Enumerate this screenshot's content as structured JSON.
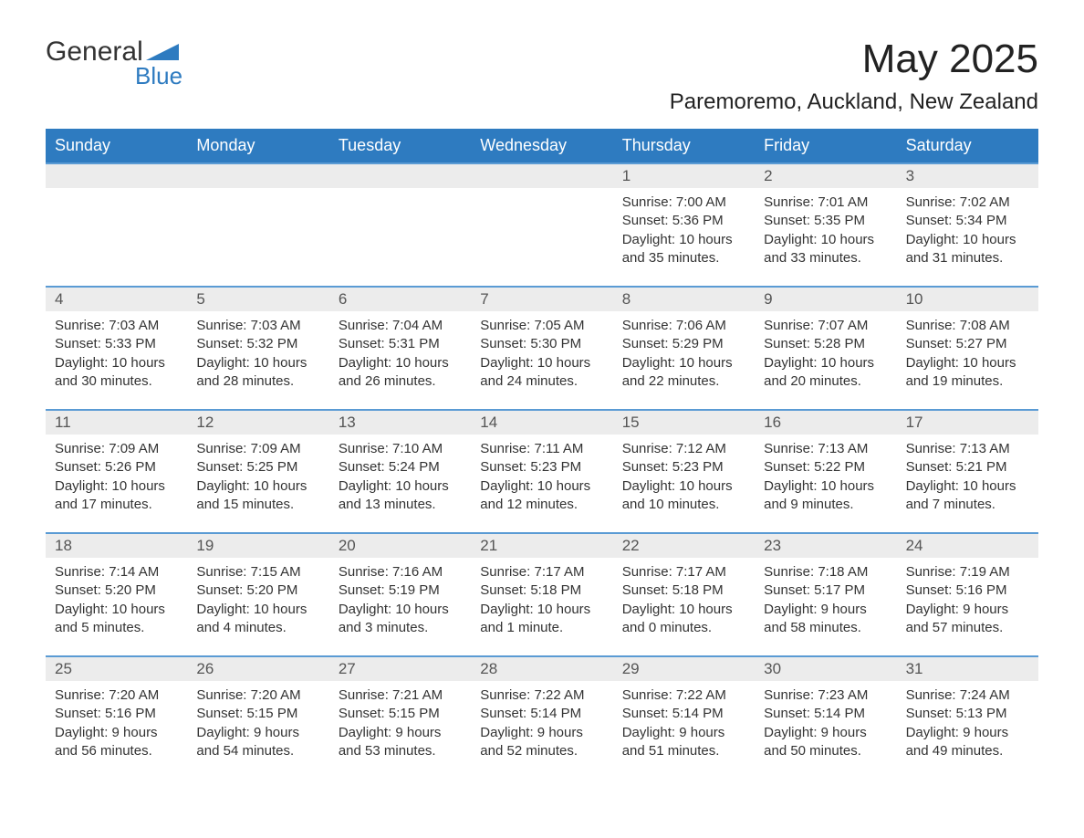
{
  "logo": {
    "general": "General",
    "blue": "Blue"
  },
  "title": "May 2025",
  "location": "Paremoremo, Auckland, New Zealand",
  "colors": {
    "header_bg": "#2e7bc0",
    "header_text": "#ffffff",
    "week_border": "#5a9bd4",
    "daynum_bg": "#ececec",
    "page_bg": "#ffffff"
  },
  "dow": [
    "Sunday",
    "Monday",
    "Tuesday",
    "Wednesday",
    "Thursday",
    "Friday",
    "Saturday"
  ],
  "weeks": [
    [
      null,
      null,
      null,
      null,
      {
        "n": "1",
        "sr": "Sunrise: 7:00 AM",
        "ss": "Sunset: 5:36 PM",
        "dl": "Daylight: 10 hours and 35 minutes."
      },
      {
        "n": "2",
        "sr": "Sunrise: 7:01 AM",
        "ss": "Sunset: 5:35 PM",
        "dl": "Daylight: 10 hours and 33 minutes."
      },
      {
        "n": "3",
        "sr": "Sunrise: 7:02 AM",
        "ss": "Sunset: 5:34 PM",
        "dl": "Daylight: 10 hours and 31 minutes."
      }
    ],
    [
      {
        "n": "4",
        "sr": "Sunrise: 7:03 AM",
        "ss": "Sunset: 5:33 PM",
        "dl": "Daylight: 10 hours and 30 minutes."
      },
      {
        "n": "5",
        "sr": "Sunrise: 7:03 AM",
        "ss": "Sunset: 5:32 PM",
        "dl": "Daylight: 10 hours and 28 minutes."
      },
      {
        "n": "6",
        "sr": "Sunrise: 7:04 AM",
        "ss": "Sunset: 5:31 PM",
        "dl": "Daylight: 10 hours and 26 minutes."
      },
      {
        "n": "7",
        "sr": "Sunrise: 7:05 AM",
        "ss": "Sunset: 5:30 PM",
        "dl": "Daylight: 10 hours and 24 minutes."
      },
      {
        "n": "8",
        "sr": "Sunrise: 7:06 AM",
        "ss": "Sunset: 5:29 PM",
        "dl": "Daylight: 10 hours and 22 minutes."
      },
      {
        "n": "9",
        "sr": "Sunrise: 7:07 AM",
        "ss": "Sunset: 5:28 PM",
        "dl": "Daylight: 10 hours and 20 minutes."
      },
      {
        "n": "10",
        "sr": "Sunrise: 7:08 AM",
        "ss": "Sunset: 5:27 PM",
        "dl": "Daylight: 10 hours and 19 minutes."
      }
    ],
    [
      {
        "n": "11",
        "sr": "Sunrise: 7:09 AM",
        "ss": "Sunset: 5:26 PM",
        "dl": "Daylight: 10 hours and 17 minutes."
      },
      {
        "n": "12",
        "sr": "Sunrise: 7:09 AM",
        "ss": "Sunset: 5:25 PM",
        "dl": "Daylight: 10 hours and 15 minutes."
      },
      {
        "n": "13",
        "sr": "Sunrise: 7:10 AM",
        "ss": "Sunset: 5:24 PM",
        "dl": "Daylight: 10 hours and 13 minutes."
      },
      {
        "n": "14",
        "sr": "Sunrise: 7:11 AM",
        "ss": "Sunset: 5:23 PM",
        "dl": "Daylight: 10 hours and 12 minutes."
      },
      {
        "n": "15",
        "sr": "Sunrise: 7:12 AM",
        "ss": "Sunset: 5:23 PM",
        "dl": "Daylight: 10 hours and 10 minutes."
      },
      {
        "n": "16",
        "sr": "Sunrise: 7:13 AM",
        "ss": "Sunset: 5:22 PM",
        "dl": "Daylight: 10 hours and 9 minutes."
      },
      {
        "n": "17",
        "sr": "Sunrise: 7:13 AM",
        "ss": "Sunset: 5:21 PM",
        "dl": "Daylight: 10 hours and 7 minutes."
      }
    ],
    [
      {
        "n": "18",
        "sr": "Sunrise: 7:14 AM",
        "ss": "Sunset: 5:20 PM",
        "dl": "Daylight: 10 hours and 5 minutes."
      },
      {
        "n": "19",
        "sr": "Sunrise: 7:15 AM",
        "ss": "Sunset: 5:20 PM",
        "dl": "Daylight: 10 hours and 4 minutes."
      },
      {
        "n": "20",
        "sr": "Sunrise: 7:16 AM",
        "ss": "Sunset: 5:19 PM",
        "dl": "Daylight: 10 hours and 3 minutes."
      },
      {
        "n": "21",
        "sr": "Sunrise: 7:17 AM",
        "ss": "Sunset: 5:18 PM",
        "dl": "Daylight: 10 hours and 1 minute."
      },
      {
        "n": "22",
        "sr": "Sunrise: 7:17 AM",
        "ss": "Sunset: 5:18 PM",
        "dl": "Daylight: 10 hours and 0 minutes."
      },
      {
        "n": "23",
        "sr": "Sunrise: 7:18 AM",
        "ss": "Sunset: 5:17 PM",
        "dl": "Daylight: 9 hours and 58 minutes."
      },
      {
        "n": "24",
        "sr": "Sunrise: 7:19 AM",
        "ss": "Sunset: 5:16 PM",
        "dl": "Daylight: 9 hours and 57 minutes."
      }
    ],
    [
      {
        "n": "25",
        "sr": "Sunrise: 7:20 AM",
        "ss": "Sunset: 5:16 PM",
        "dl": "Daylight: 9 hours and 56 minutes."
      },
      {
        "n": "26",
        "sr": "Sunrise: 7:20 AM",
        "ss": "Sunset: 5:15 PM",
        "dl": "Daylight: 9 hours and 54 minutes."
      },
      {
        "n": "27",
        "sr": "Sunrise: 7:21 AM",
        "ss": "Sunset: 5:15 PM",
        "dl": "Daylight: 9 hours and 53 minutes."
      },
      {
        "n": "28",
        "sr": "Sunrise: 7:22 AM",
        "ss": "Sunset: 5:14 PM",
        "dl": "Daylight: 9 hours and 52 minutes."
      },
      {
        "n": "29",
        "sr": "Sunrise: 7:22 AM",
        "ss": "Sunset: 5:14 PM",
        "dl": "Daylight: 9 hours and 51 minutes."
      },
      {
        "n": "30",
        "sr": "Sunrise: 7:23 AM",
        "ss": "Sunset: 5:14 PM",
        "dl": "Daylight: 9 hours and 50 minutes."
      },
      {
        "n": "31",
        "sr": "Sunrise: 7:24 AM",
        "ss": "Sunset: 5:13 PM",
        "dl": "Daylight: 9 hours and 49 minutes."
      }
    ]
  ]
}
